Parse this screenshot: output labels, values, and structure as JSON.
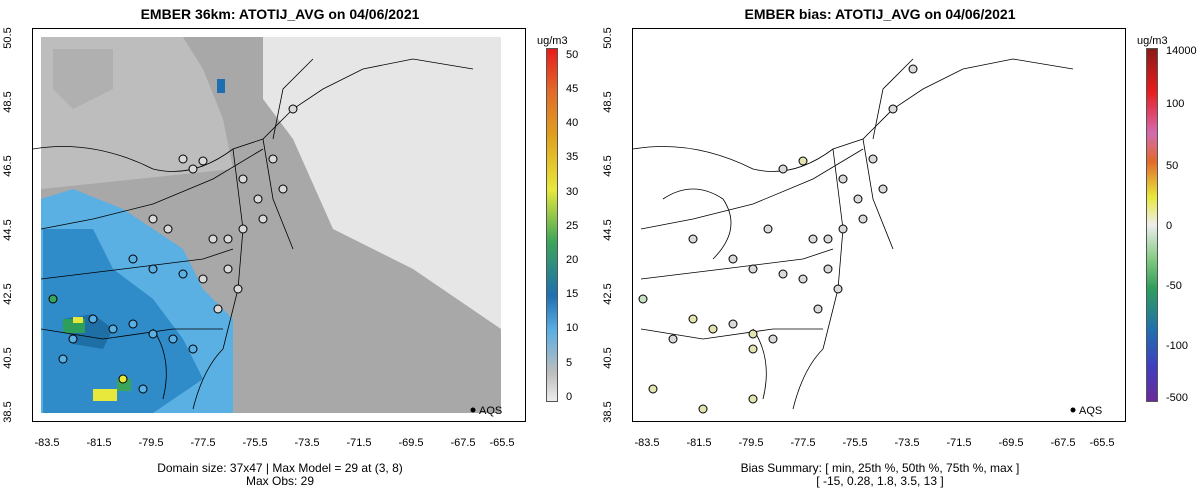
{
  "left": {
    "title": "EMBER 36km: ATOTIJ_AVG on 04/06/2021",
    "y_ticks": [
      "50.5",
      "48.5",
      "46.5",
      "44.5",
      "42.5",
      "40.5",
      "38.5"
    ],
    "x_ticks": [
      "-83.5",
      "-81.5",
      "-79.5",
      "-77.5",
      "-75.5",
      "-73.5",
      "-71.5",
      "-69.5",
      "-67.5",
      "-65.5"
    ],
    "legend_label": "AQS",
    "colorbar_unit": "ug/m3",
    "colorbar_labels": [
      "50",
      "45",
      "40",
      "35",
      "30",
      "25",
      "20",
      "15",
      "10",
      "5",
      "0"
    ],
    "footer_line1": "Domain size: 37x47 | Max Model = 29 at (3, 8)",
    "footer_line2": "Max Obs: 29"
  },
  "right": {
    "title": "EMBER bias: ATOTIJ_AVG on 04/06/2021",
    "y_ticks": [
      "50.5",
      "48.5",
      "46.5",
      "44.5",
      "42.5",
      "40.5",
      "38.5"
    ],
    "x_ticks": [
      "-83.5",
      "-81.5",
      "-79.5",
      "-77.5",
      "-75.5",
      "-73.5",
      "-71.5",
      "-69.5",
      "-67.5",
      "-65.5"
    ],
    "legend_label": "AQS",
    "colorbar_unit": "ug/m3",
    "colorbar_labels": [
      "14000",
      "100",
      "50",
      "0",
      "-50",
      "-100",
      "-500"
    ],
    "footer_line1": "Bias Summary: [ min, 25th %, 50th %, 75th %, max ]",
    "footer_line2": "[ -15,   0.28,   1.8,   3.5,   13 ]"
  },
  "colors": {
    "model_low": "#bdbdbd",
    "model_mid": "#5aafe3",
    "model_high": "#1f6fb0",
    "model_peak": "#e8e83c",
    "station_ring": "#000000",
    "bias_neutral": "#d9d9d9",
    "bias_pos": "#e3e3b0"
  }
}
